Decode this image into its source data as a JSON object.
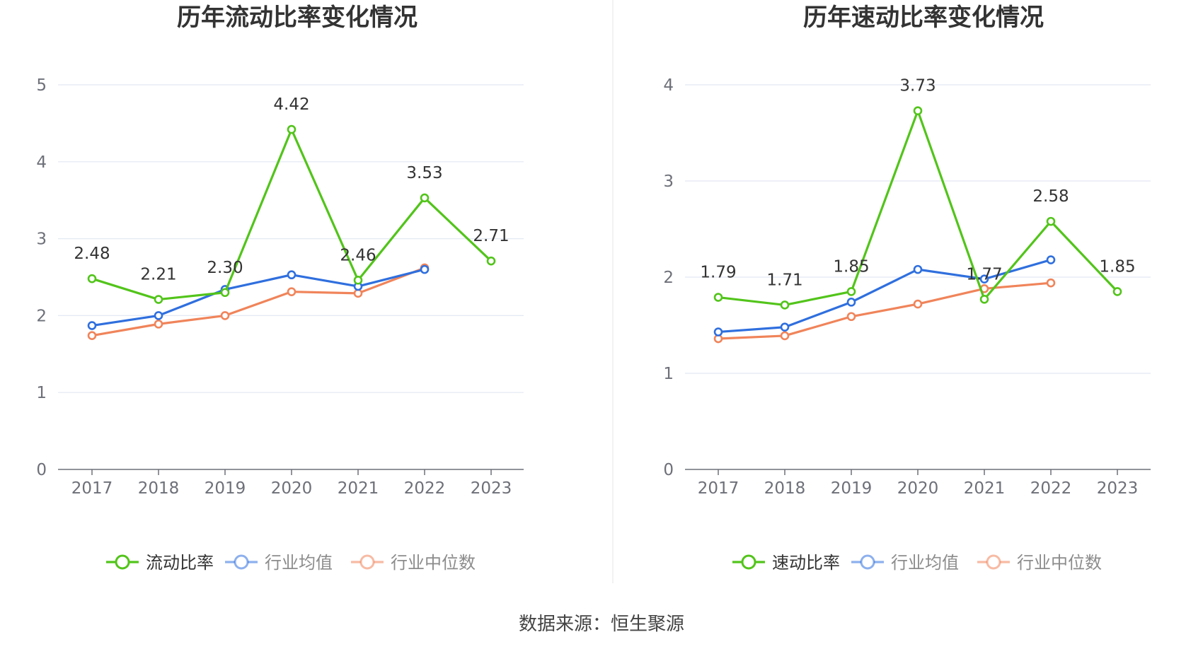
{
  "source": "数据来源：恒生聚源",
  "chart_data": [
    {
      "type": "line",
      "title": "历年流动比率变化情况",
      "categories": [
        "2017",
        "2018",
        "2019",
        "2020",
        "2021",
        "2022",
        "2023"
      ],
      "ylim": [
        0,
        5
      ],
      "yticks": [
        0,
        1,
        2,
        3,
        4,
        5
      ],
      "series": [
        {
          "name": "流动比率",
          "color": "#52c41a",
          "values": [
            2.48,
            2.21,
            2.3,
            4.42,
            2.46,
            3.53,
            2.71
          ],
          "labels": [
            "2.48",
            "2.21",
            "2.30",
            "4.42",
            "2.46",
            "3.53",
            "2.71"
          ]
        },
        {
          "name": "行业均值",
          "color": "#2f6fde",
          "values": [
            1.87,
            2.0,
            2.34,
            2.53,
            2.38,
            2.6,
            null
          ]
        },
        {
          "name": "行业中位数",
          "color": "#f0845a",
          "values": [
            1.74,
            1.89,
            2.0,
            2.31,
            2.29,
            2.62,
            null
          ]
        }
      ]
    },
    {
      "type": "line",
      "title": "历年速动比率变化情况",
      "categories": [
        "2017",
        "2018",
        "2019",
        "2020",
        "2021",
        "2022",
        "2023"
      ],
      "ylim": [
        0,
        4
      ],
      "yticks": [
        0,
        1,
        2,
        3,
        4
      ],
      "series": [
        {
          "name": "速动比率",
          "color": "#52c41a",
          "values": [
            1.79,
            1.71,
            1.85,
            3.73,
            1.77,
            2.58,
            1.85
          ],
          "labels": [
            "1.79",
            "1.71",
            "1.85",
            "3.73",
            "1.77",
            "2.58",
            "1.85"
          ]
        },
        {
          "name": "行业均值",
          "color": "#2f6fde",
          "values": [
            1.43,
            1.48,
            1.74,
            2.08,
            1.98,
            2.18,
            null
          ]
        },
        {
          "name": "行业中位数",
          "color": "#f0845a",
          "values": [
            1.36,
            1.39,
            1.59,
            1.72,
            1.88,
            1.94,
            null
          ]
        }
      ]
    }
  ]
}
